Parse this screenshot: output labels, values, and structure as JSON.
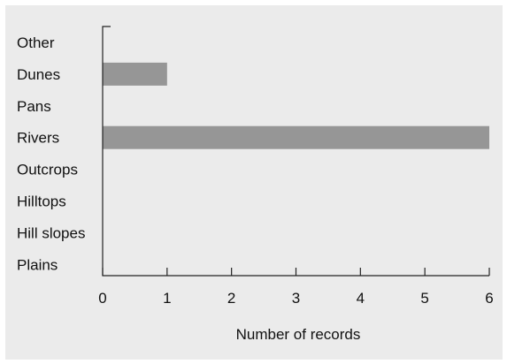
{
  "chart_data": {
    "type": "bar",
    "orientation": "horizontal",
    "categories": [
      "Other",
      "Dunes",
      "Pans",
      "Rivers",
      "Outcrops",
      "Hilltops",
      "Hill slopes",
      "Plains"
    ],
    "values": [
      0,
      1,
      0,
      6,
      0,
      0,
      0,
      0
    ],
    "xlabel": "Number of records",
    "ylabel": "",
    "xlim": [
      0,
      6
    ],
    "xticks": [
      0,
      1,
      2,
      3,
      4,
      5,
      6
    ],
    "grid": false,
    "bar_color": "#969696",
    "background_color": "#ebebeb"
  }
}
